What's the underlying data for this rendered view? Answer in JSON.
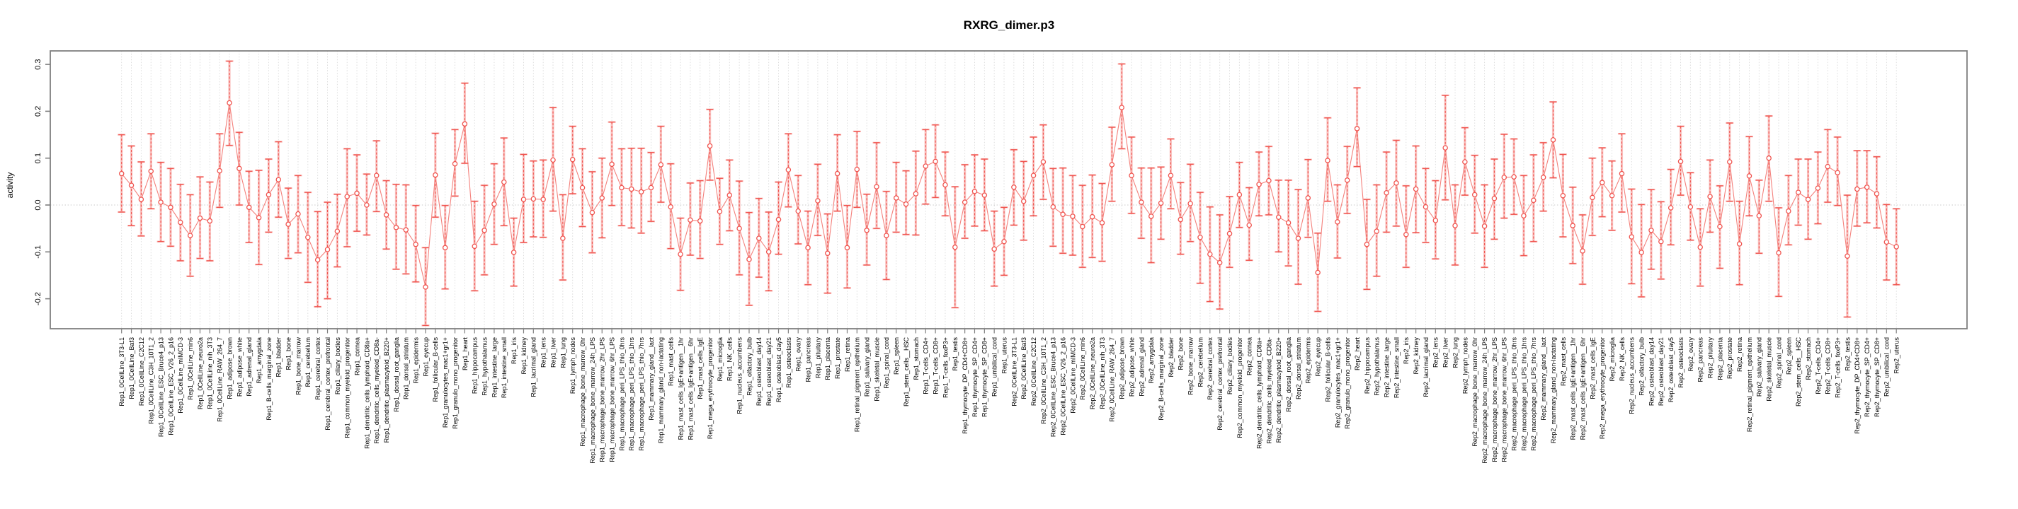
{
  "header": {
    "title": "RXRG_dimer.p3"
  },
  "chart_data": {
    "type": "scatter",
    "subtype": "errorbar",
    "title": "RXRG_dimer.p3",
    "xlabel": "",
    "ylabel": "activity",
    "ylim": [
      -0.265,
      0.328
    ],
    "yticks": [
      -0.2,
      -0.1,
      0.0,
      0.1,
      0.2,
      0.3
    ],
    "grid": "vertical dotted gridline per category; horizontal dotted line at y=0 only; no legend",
    "marker": "open circle at mean, dashed stem error bar with caps, light connecting line between means",
    "colors": {
      "point": "#f0544f",
      "line": "#f4817c",
      "band": "#f6928d",
      "grid": "#d9d9d9",
      "zero_line": "#c9c9c9",
      "box": "#7f7f7f",
      "text": "#000000"
    },
    "categories": [
      "Rep1_0CellLine_3T3-L1",
      "Rep1_0CellLine_Baf3",
      "Rep1_0CellLine_C2C12",
      "Rep1_0CellLine_C3H_10T1_2",
      "Rep1_0CellLine_ESC_Bruce4_p13",
      "Rep1_0CellLine_ESC_V26_2_p16",
      "Rep1_0CellLine_mIMCD-3",
      "Rep1_0CellLine_min6",
      "Rep1_0CellLine_neuro2a",
      "Rep1_0CellLine_nih_3T3",
      "Rep1_0CellLine_RAW_264_7",
      "Rep1_adipose_brown",
      "Rep1_adipose_white",
      "Rep1_adrenal_gland",
      "Rep1_amygdala",
      "Rep1_B-cells_marginal_zone",
      "Rep1_bladder",
      "Rep1_bone",
      "Rep1_bone_marrow",
      "Rep1_cerebellum",
      "Rep1_cerebral_cortex",
      "Rep1_cerebral_cortex_prefrontal",
      "Rep1_ciliary_bodies",
      "Rep1_common_myeloid_progenitor",
      "Rep1_cornea",
      "Rep1_dendritic_cells_lymphoid_CD8a+",
      "Rep1_dendritic_cells_myeloid_CD8a-",
      "Rep1_dendritic_plasmacytoid_B220+",
      "Rep1_dorsal_root_ganglia",
      "Rep1_dorsal_striatum",
      "Rep1_epidermis",
      "Rep1_eyecup",
      "Rep1_follicular_B-cells",
      "Rep1_granulocytes_mac1+gr1+",
      "Rep1_granulo_mono_progenitor",
      "Rep1_heart",
      "Rep1_hippocampus",
      "Rep1_hypothalamus",
      "Rep1_intestine_large",
      "Rep1_intestine_small",
      "Rep1_iris",
      "Rep1_kidney",
      "Rep1_lacrimal_gland",
      "Rep1_lens",
      "Rep1_liver",
      "Rep1_lung",
      "Rep1_lymph_nodes",
      "Rep1_macrophage_bone_marrow_0hr",
      "Rep1_macrophage_bone_marrow_24h_LPS",
      "Rep1_macrophage_bone_marrow_2hr_LPS",
      "Rep1_macrophage_bone_marrow_6hr_LPS",
      "Rep1_macrophage_peri_LPS_thio_0hrs",
      "Rep1_macrophage_peri_LPS_thio_1hrs",
      "Rep1_macrophage_peri_LPS_thio_7hrs",
      "Rep1_mammary_gland__lact",
      "Rep1_mammary_gland_non-lactating",
      "Rep1_mast_cells",
      "Rep1_mast_cells_IgE+antigen__1hr",
      "Rep1_mast_cells_IgE+antigen__6hr",
      "Rep1_mast_cells_IgE",
      "Rep1_mega_erythrocyte_progenitor",
      "Rep1_microglia",
      "Rep1_NK_cells",
      "Rep1_nucleus_accumbens",
      "Rep1_olfactory_bulb",
      "Rep1_osteoblast_day14",
      "Rep1_osteoblast_day21",
      "Rep1_osteoblast_day5",
      "Rep1_osteoclasts",
      "Rep1_ovary",
      "Rep1_pancreas",
      "Rep1_pituitary",
      "Rep1_placenta",
      "Rep1_prostate",
      "Rep1_retina",
      "Rep1_retinal_pigment_epithelium",
      "Rep1_salivary_gland",
      "Rep1_skeletal_muscle",
      "Rep1_spinal_cord",
      "Rep1_spleen",
      "Rep1_stem_cells__HSC",
      "Rep1_stomach",
      "Rep1_T-cells_CD4+",
      "Rep1_T-cells_CD8+",
      "Rep1_T-cells_foxP3+",
      "Rep1_testis",
      "Rep1_thymocyte_DP_CD4+CD8+",
      "Rep1_thymocyte_SP_CD4+",
      "Rep1_thymocyte_SP_CD8+",
      "Rep1_umbilical_cord",
      "Rep1_uterus",
      "Rep2_0CellLine_3T3-L1",
      "Rep2_0CellLine_Baf3",
      "Rep2_0CellLine_C2C12",
      "Rep2_0CellLine_C3H_10T1_2",
      "Rep2_0CellLine_ESC_Bruce4_p13",
      "Rep2_0CellLine_ESC_V26_2_p16",
      "Rep2_0CellLine_mIMCD-3",
      "Rep2_0CellLine_min6",
      "Rep2_0CellLine_neuro2a",
      "Rep2_0CellLine_nih_3T3",
      "Rep2_0CellLine_RAW_264_7",
      "Rep2_adipose_brown",
      "Rep2_adipose_white",
      "Rep2_adrenal_gland",
      "Rep2_amygdala",
      "Rep2_B-cells_marginal_zone",
      "Rep2_bladder",
      "Rep2_bone",
      "Rep2_bone_marrow",
      "Rep2_cerebellum",
      "Rep2_cerebral_cortex",
      "Rep2_cerebral_cortex_prefrontal",
      "Rep2_ciliary_bodies",
      "Rep2_common_myeloid_progenitor",
      "Rep2_cornea",
      "Rep2_dendritic_cells_lymphoid_CD8a+",
      "Rep2_dendritic_cells_myeloid_CD8a-",
      "Rep2_dendritic_plasmacytoid_B220+",
      "Rep2_dorsal_root_ganglia",
      "Rep2_dorsal_striatum",
      "Rep2_epidermis",
      "Rep2_eyecup",
      "Rep2_follicular_B-cells",
      "Rep2_granulocytes_mac1+gr1+",
      "Rep2_granulo_mono_progenitor",
      "Rep2_heart",
      "Rep2_hippocampus",
      "Rep2_hypothalamus",
      "Rep2_intestine_large",
      "Rep2_intestine_small",
      "Rep2_iris",
      "Rep2_kidney",
      "Rep2_lacrimal_gland",
      "Rep2_lens",
      "Rep2_liver",
      "Rep2_lung",
      "Rep2_lymph_nodes",
      "Rep2_macrophage_bone_marrow_0hr",
      "Rep2_macrophage_bone_marrow_24h_LPS",
      "Rep2_macrophage_bone_marrow_2hr_LPS",
      "Rep2_macrophage_bone_marrow_6hr_LPS",
      "Rep2_macrophage_peri_LPS_thio_0hrs",
      "Rep2_macrophage_peri_LPS_thio_1hrs",
      "Rep2_macrophage_peri_LPS_thio_7hrs",
      "Rep2_mammary_gland__lact",
      "Rep2_mammary_gland_non-lactating",
      "Rep2_mast_cells",
      "Rep2_mast_cells_IgE+antigen__1hr",
      "Rep2_mast_cells_IgE+antigen__6hr",
      "Rep2_mast_cells_IgE",
      "Rep2_mega_erythrocyte_progenitor",
      "Rep2_microglia",
      "Rep2_NK_cells",
      "Rep2_nucleus_accumbens",
      "Rep2_olfactory_bulb",
      "Rep2_osteoblast_day14",
      "Rep2_osteoblast_day21",
      "Rep2_osteoblast_day5",
      "Rep2_osteoclasts",
      "Rep2_ovary",
      "Rep2_pancreas",
      "Rep2_pituitary",
      "Rep2_placenta",
      "Rep2_prostate",
      "Rep2_retina",
      "Rep2_retinal_pigment_epithelium",
      "Rep2_salivary_gland",
      "Rep2_skeletal_muscle",
      "Rep2_spinal_cord",
      "Rep2_spleen",
      "Rep2_stem_cells__HSC",
      "Rep2_stomach",
      "Rep2_T-cells_CD4+",
      "Rep2_T-cells_CD8+",
      "Rep2_T-cells_foxP3+",
      "Rep2_testis",
      "Rep2_thymocyte_DP_CD4+CD8+",
      "Rep2_thymocyte_SP_CD4+",
      "Rep2_thymocyte_SP_CD8+",
      "Rep2_umbilical_cord",
      "Rep2_uterus"
    ],
    "series": [
      {
        "name": "mean_activity",
        "values": [
          0.067,
          0.042,
          0.012,
          0.072,
          0.006,
          -0.005,
          -0.037,
          -0.065,
          -0.028,
          -0.034,
          0.073,
          0.218,
          0.078,
          -0.005,
          -0.027,
          0.022,
          0.054,
          -0.041,
          -0.019,
          -0.069,
          -0.117,
          -0.095,
          -0.056,
          0.018,
          0.025,
          0.0,
          0.063,
          -0.021,
          -0.048,
          -0.053,
          -0.084,
          -0.175,
          0.064,
          -0.091,
          0.088,
          0.173,
          -0.088,
          -0.054,
          0.002,
          0.049,
          -0.101,
          0.012,
          0.013,
          0.012,
          0.096,
          -0.071,
          0.097,
          0.037,
          -0.016,
          0.015,
          0.087,
          0.037,
          0.034,
          0.028,
          0.037,
          0.086,
          -0.004,
          -0.105,
          -0.032,
          -0.034,
          0.126,
          -0.014,
          0.021,
          -0.05,
          -0.116,
          -0.071,
          -0.1,
          -0.031,
          0.075,
          -0.013,
          -0.091,
          0.009,
          -0.103,
          0.067,
          -0.091,
          0.076,
          -0.054,
          0.039,
          -0.065,
          0.015,
          0.002,
          0.024,
          0.083,
          0.093,
          0.043,
          -0.09,
          0.006,
          0.029,
          0.021,
          -0.094,
          -0.078,
          0.038,
          0.008,
          0.063,
          0.092,
          -0.004,
          -0.02,
          -0.024,
          -0.046,
          -0.025,
          -0.038,
          0.086,
          0.208,
          0.063,
          0.006,
          -0.024,
          0.004,
          0.063,
          -0.031,
          0.003,
          -0.069,
          -0.105,
          -0.123,
          -0.061,
          0.022,
          -0.043,
          0.044,
          0.052,
          -0.026,
          -0.038,
          -0.071,
          0.015,
          -0.144,
          0.095,
          -0.036,
          0.053,
          0.163,
          -0.084,
          -0.056,
          0.026,
          0.047,
          -0.063,
          0.034,
          -0.004,
          -0.033,
          0.122,
          -0.044,
          0.092,
          0.022,
          -0.045,
          0.014,
          0.059,
          0.06,
          -0.023,
          0.01,
          0.059,
          0.139,
          0.02,
          -0.044,
          -0.098,
          0.016,
          0.048,
          0.02,
          0.067,
          -0.068,
          -0.101,
          -0.054,
          -0.078,
          -0.006,
          0.093,
          -0.004,
          -0.09,
          0.018,
          -0.046,
          0.092,
          -0.083,
          0.062,
          -0.023,
          0.1,
          -0.102,
          -0.013,
          0.027,
          0.012,
          0.036,
          0.082,
          0.069,
          -0.109,
          0.034,
          0.038,
          0.024,
          -0.079,
          -0.089
        ]
      },
      {
        "name": "ci_low",
        "values": [
          -0.015,
          -0.044,
          -0.066,
          -0.008,
          -0.078,
          -0.088,
          -0.119,
          -0.152,
          -0.114,
          -0.119,
          -0.005,
          0.127,
          0.0,
          -0.08,
          -0.127,
          -0.058,
          -0.026,
          -0.114,
          -0.102,
          -0.165,
          -0.217,
          -0.2,
          -0.132,
          -0.089,
          -0.056,
          -0.064,
          -0.014,
          -0.094,
          -0.137,
          -0.147,
          -0.164,
          -0.257,
          -0.026,
          -0.179,
          0.019,
          0.089,
          -0.183,
          -0.149,
          -0.084,
          -0.044,
          -0.173,
          -0.08,
          -0.068,
          -0.069,
          -0.013,
          -0.16,
          0.024,
          -0.046,
          -0.102,
          -0.07,
          -0.001,
          -0.044,
          -0.049,
          -0.06,
          -0.035,
          0.006,
          -0.093,
          -0.182,
          -0.107,
          -0.114,
          0.053,
          -0.084,
          -0.055,
          -0.149,
          -0.214,
          -0.154,
          -0.183,
          -0.105,
          -0.004,
          -0.083,
          -0.17,
          -0.065,
          -0.188,
          -0.013,
          -0.177,
          -0.005,
          -0.128,
          -0.05,
          -0.159,
          -0.058,
          -0.063,
          -0.064,
          0.002,
          0.016,
          -0.023,
          -0.219,
          -0.071,
          -0.045,
          -0.055,
          -0.173,
          -0.15,
          -0.043,
          -0.075,
          -0.023,
          0.012,
          -0.088,
          -0.103,
          -0.107,
          -0.133,
          -0.112,
          -0.12,
          0.008,
          0.12,
          -0.018,
          -0.071,
          -0.123,
          -0.073,
          -0.008,
          -0.105,
          -0.078,
          -0.167,
          -0.206,
          -0.222,
          -0.133,
          -0.048,
          -0.118,
          -0.023,
          -0.021,
          -0.1,
          -0.13,
          -0.169,
          -0.069,
          -0.227,
          0.008,
          -0.113,
          -0.018,
          0.082,
          -0.18,
          -0.152,
          -0.058,
          -0.045,
          -0.133,
          -0.059,
          -0.08,
          -0.115,
          0.011,
          -0.128,
          0.021,
          -0.06,
          -0.133,
          -0.073,
          -0.028,
          -0.02,
          -0.108,
          -0.078,
          -0.013,
          0.058,
          -0.068,
          -0.125,
          -0.169,
          -0.065,
          -0.025,
          -0.054,
          -0.015,
          -0.168,
          -0.196,
          -0.137,
          -0.158,
          -0.085,
          0.021,
          -0.075,
          -0.173,
          -0.058,
          -0.135,
          0.008,
          -0.17,
          -0.023,
          -0.103,
          0.008,
          -0.195,
          -0.085,
          -0.043,
          -0.073,
          -0.04,
          0.006,
          -0.001,
          -0.239,
          -0.045,
          -0.038,
          -0.049,
          -0.16,
          -0.17
        ]
      },
      {
        "name": "ci_high",
        "values": [
          0.15,
          0.126,
          0.092,
          0.152,
          0.091,
          0.078,
          0.044,
          0.022,
          0.06,
          0.049,
          0.152,
          0.307,
          0.155,
          0.072,
          0.074,
          0.098,
          0.135,
          0.036,
          0.063,
          0.027,
          -0.014,
          0.006,
          0.023,
          0.12,
          0.107,
          0.066,
          0.137,
          0.052,
          0.044,
          0.043,
          -0.001,
          -0.091,
          0.153,
          -0.001,
          0.161,
          0.26,
          0.008,
          0.042,
          0.088,
          0.143,
          -0.028,
          0.108,
          0.094,
          0.096,
          0.208,
          0.022,
          0.168,
          0.12,
          0.071,
          0.1,
          0.177,
          0.12,
          0.121,
          0.121,
          0.112,
          0.168,
          0.088,
          -0.028,
          0.047,
          0.052,
          0.204,
          0.057,
          0.096,
          0.051,
          -0.016,
          0.014,
          -0.015,
          0.049,
          0.152,
          0.063,
          -0.013,
          0.087,
          -0.019,
          0.15,
          -0.001,
          0.157,
          0.023,
          0.133,
          0.029,
          0.091,
          0.073,
          0.115,
          0.161,
          0.171,
          0.113,
          0.039,
          0.086,
          0.107,
          0.098,
          -0.013,
          -0.005,
          0.118,
          0.093,
          0.145,
          0.171,
          0.078,
          0.079,
          0.063,
          0.042,
          0.064,
          0.046,
          0.166,
          0.301,
          0.145,
          0.079,
          0.079,
          0.081,
          0.141,
          0.048,
          0.087,
          0.027,
          -0.004,
          -0.021,
          0.018,
          0.091,
          0.037,
          0.113,
          0.125,
          0.053,
          0.053,
          0.033,
          0.097,
          -0.06,
          0.186,
          0.043,
          0.125,
          0.25,
          0.012,
          0.043,
          0.113,
          0.138,
          0.041,
          0.126,
          0.078,
          0.052,
          0.234,
          0.043,
          0.165,
          0.106,
          0.043,
          0.098,
          0.151,
          0.141,
          0.063,
          0.107,
          0.133,
          0.22,
          0.108,
          0.038,
          -0.021,
          0.1,
          0.122,
          0.094,
          0.152,
          0.034,
          0.001,
          0.033,
          0.007,
          0.076,
          0.168,
          0.069,
          -0.008,
          0.096,
          0.041,
          0.175,
          0.008,
          0.146,
          0.053,
          0.19,
          -0.006,
          0.063,
          0.098,
          0.098,
          0.113,
          0.161,
          0.145,
          0.021,
          0.116,
          0.116,
          0.103,
          0.001,
          -0.008
        ]
      }
    ]
  }
}
